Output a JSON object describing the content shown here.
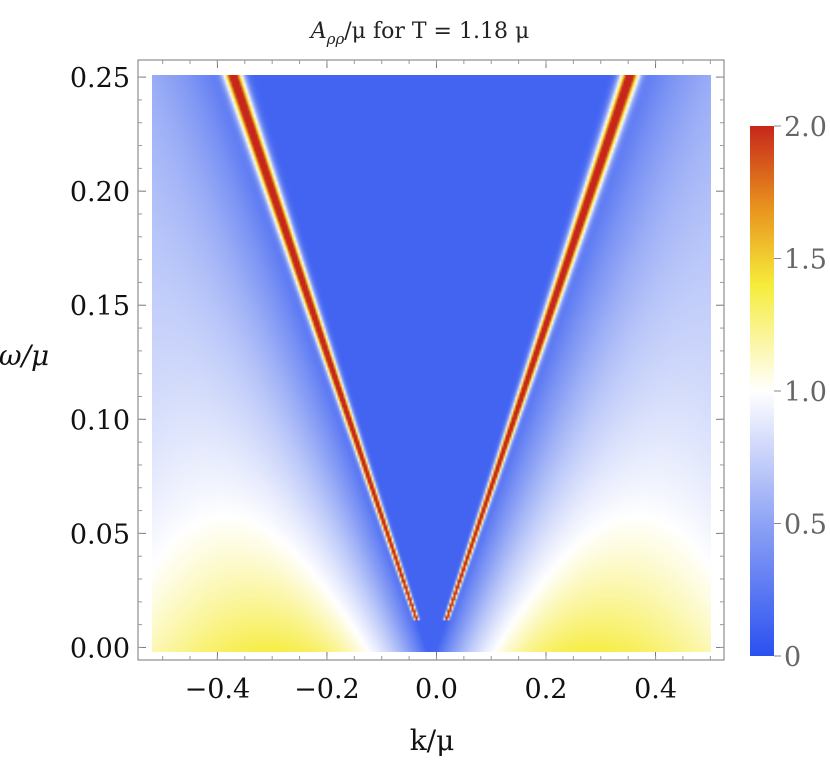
{
  "chart_data": {
    "type": "heatmap",
    "title": "Aρρ/μ for T = 1.18 μ",
    "title_parts": {
      "symbol": "A",
      "subscript": "ρρ",
      "rest": "/μ for T = 1.18 μ"
    },
    "xlabel": "k/μ",
    "ylabel": "ω/μ",
    "xlim": [
      -0.5,
      0.5
    ],
    "ylim": [
      0.005,
      0.245
    ],
    "x_ticks": [
      -0.4,
      -0.2,
      0.0,
      0.2,
      0.4
    ],
    "x_tick_labels": [
      "−0.4",
      "−0.2",
      "0.0",
      "0.2",
      "0.4"
    ],
    "y_ticks": [
      0.0,
      0.05,
      0.1,
      0.15,
      0.2,
      0.25
    ],
    "y_tick_labels": [
      "0.00",
      "0.05",
      "0.10",
      "0.15",
      "0.20",
      "0.25"
    ],
    "colorbar": {
      "range": [
        0,
        2
      ],
      "ticks": [
        0,
        0.5,
        1.0,
        1.5,
        2.0
      ],
      "tick_labels": [
        "0",
        "0.5",
        "1.0",
        "1.5",
        "2.0"
      ],
      "colors": [
        "#2a50f0",
        "#ffffff",
        "#f6ec3a",
        "#e8901d",
        "#c6271b"
      ]
    },
    "features": {
      "sound_mode_velocity": 0.69,
      "sound_mode_peak": 2.0,
      "continuum_peak": 1.3
    }
  }
}
